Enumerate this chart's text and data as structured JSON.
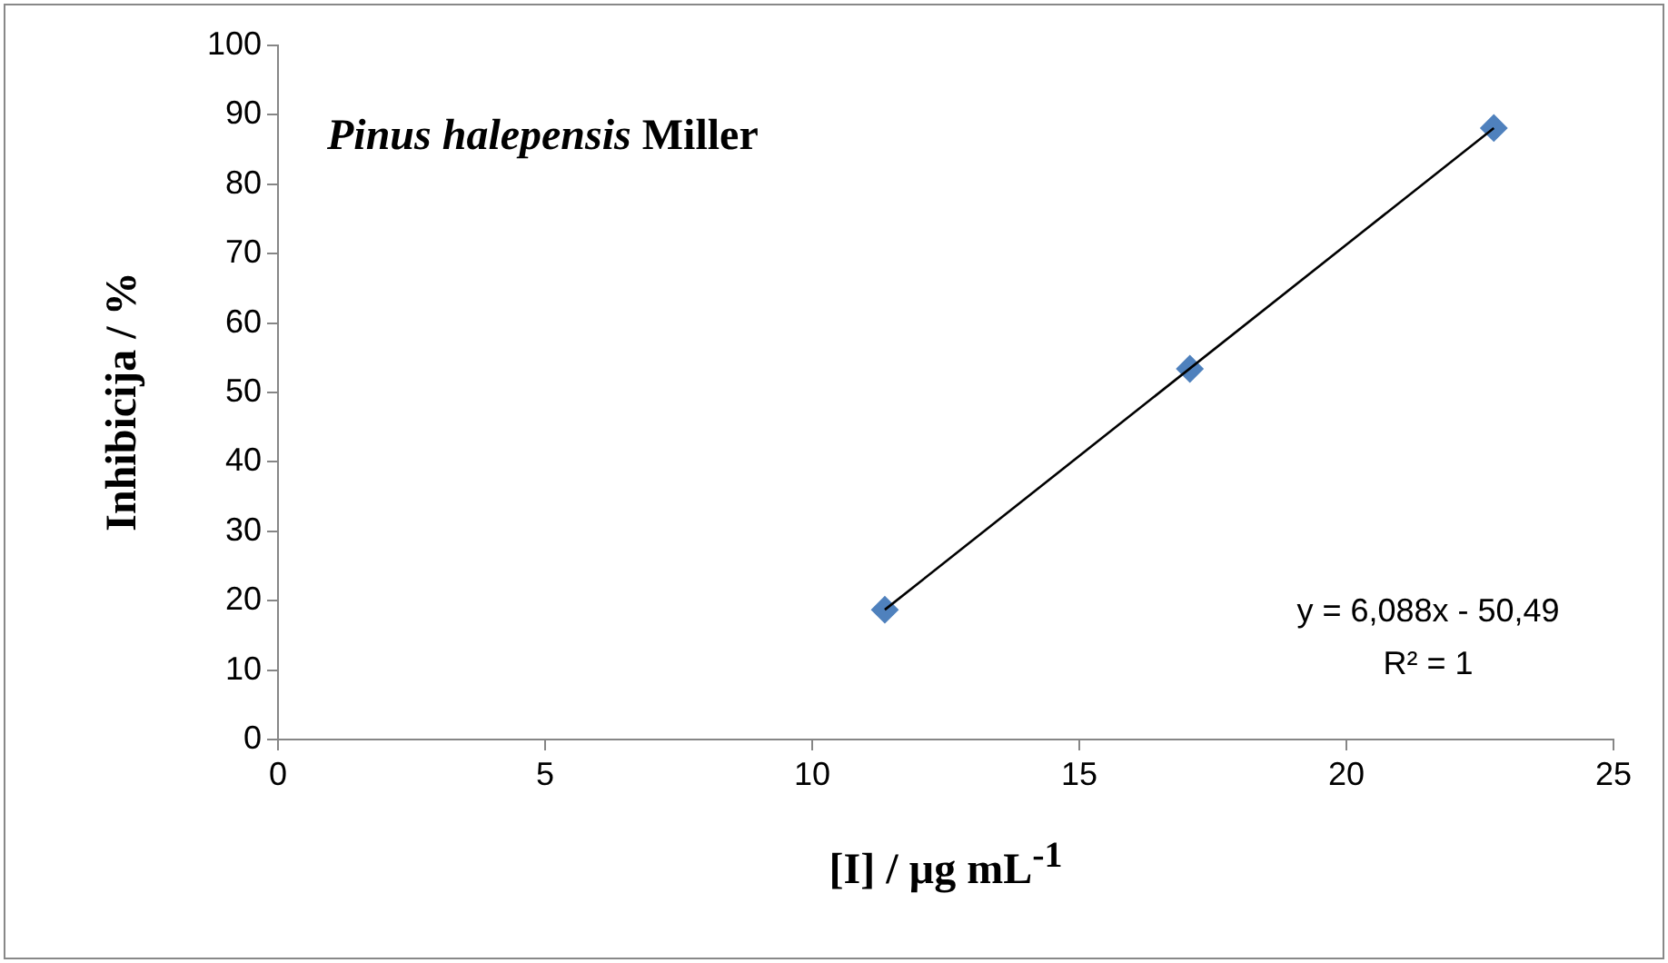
{
  "chart_data": {
    "type": "scatter",
    "title": "Pinus halepensis Miller",
    "xlabel": "[I] / µg mL$^{-1}$",
    "ylabel": "Inhibicija / %",
    "x": [
      11.36,
      17.07,
      22.76
    ],
    "series": [
      {
        "type": "scatter",
        "color": "#4f81bd",
        "values": [
          18.7,
          53.4,
          88.1
        ],
        "marker": "diamond"
      },
      {
        "type": "line",
        "color": "#000000",
        "x": [
          11.36,
          22.76
        ],
        "values": [
          18.7,
          88.1
        ],
        "marker": "none"
      }
    ],
    "xlim": [
      0,
      25
    ],
    "xticks": [
      0,
      5,
      10,
      15,
      20,
      25
    ],
    "ylim": [
      0,
      100
    ],
    "yticks": [
      0,
      10,
      20,
      30,
      40,
      50,
      60,
      70,
      80,
      90,
      100
    ],
    "annotations": [
      "y = 6,088x - 50,49",
      "R² = 1"
    ],
    "legend": false
  }
}
